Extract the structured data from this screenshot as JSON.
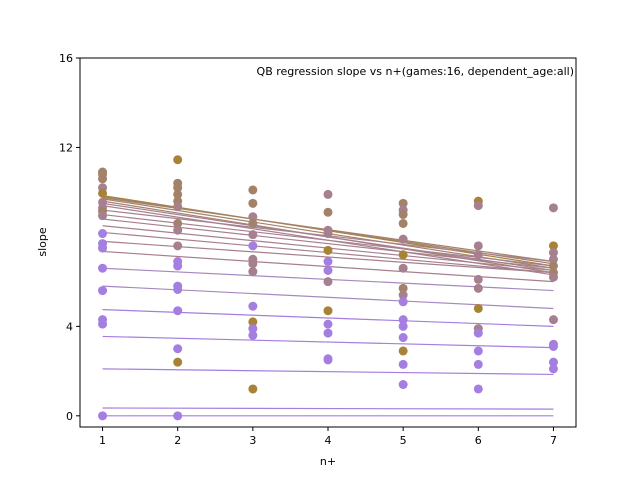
{
  "chart_data": {
    "type": "scatter",
    "title": "QB regression slope vs n+(games:16, dependent_age:all)",
    "xlabel": "n+",
    "ylabel": "slope",
    "xlim": [
      0.7,
      7.3
    ],
    "ylim": [
      -0.5,
      16
    ],
    "xticks": [
      1,
      2,
      3,
      4,
      5,
      6,
      7
    ],
    "yticks": [
      0,
      4,
      12,
      16
    ],
    "grid": false,
    "colors": {
      "purple": "#a47ee0",
      "brown": "#a88236"
    },
    "points": [
      {
        "x": 1,
        "y": 10.9,
        "color": "#a3826a"
      },
      {
        "x": 1,
        "y": 10.8,
        "color": "#a3826a"
      },
      {
        "x": 1,
        "y": 10.6,
        "color": "#a3826a"
      },
      {
        "x": 1,
        "y": 10.2,
        "color": "#a7808f"
      },
      {
        "x": 1,
        "y": 9.95,
        "color": "#a88236"
      },
      {
        "x": 1,
        "y": 9.55,
        "color": "#a7808f"
      },
      {
        "x": 1,
        "y": 9.3,
        "color": "#a7808f"
      },
      {
        "x": 1,
        "y": 9.15,
        "color": "#a3826a"
      },
      {
        "x": 1,
        "y": 8.95,
        "color": "#a7808f"
      },
      {
        "x": 1,
        "y": 8.15,
        "color": "#a47ee0"
      },
      {
        "x": 1,
        "y": 7.7,
        "color": "#a47ee0"
      },
      {
        "x": 1,
        "y": 7.5,
        "color": "#a47ee0"
      },
      {
        "x": 1,
        "y": 6.6,
        "color": "#a47ee0"
      },
      {
        "x": 1,
        "y": 5.6,
        "color": "#a47ee0"
      },
      {
        "x": 1,
        "y": 4.3,
        "color": "#a47ee0"
      },
      {
        "x": 1,
        "y": 4.1,
        "color": "#a47ee0"
      },
      {
        "x": 1,
        "y": 0.0,
        "color": "#a47ee0"
      },
      {
        "x": 2,
        "y": 11.45,
        "color": "#a88236"
      },
      {
        "x": 2,
        "y": 10.4,
        "color": "#a3826a"
      },
      {
        "x": 2,
        "y": 10.2,
        "color": "#a3826a"
      },
      {
        "x": 2,
        "y": 9.9,
        "color": "#a3826a"
      },
      {
        "x": 2,
        "y": 9.6,
        "color": "#a3826a"
      },
      {
        "x": 2,
        "y": 9.35,
        "color": "#a7808f"
      },
      {
        "x": 2,
        "y": 8.6,
        "color": "#a3826a"
      },
      {
        "x": 2,
        "y": 8.3,
        "color": "#a7808f"
      },
      {
        "x": 2,
        "y": 7.6,
        "color": "#a7808f"
      },
      {
        "x": 2,
        "y": 6.9,
        "color": "#a47ee0"
      },
      {
        "x": 2,
        "y": 6.7,
        "color": "#a47ee0"
      },
      {
        "x": 2,
        "y": 5.8,
        "color": "#a47ee0"
      },
      {
        "x": 2,
        "y": 5.65,
        "color": "#a47ee0"
      },
      {
        "x": 2,
        "y": 4.7,
        "color": "#a47ee0"
      },
      {
        "x": 2,
        "y": 3.0,
        "color": "#a47ee0"
      },
      {
        "x": 2,
        "y": 2.4,
        "color": "#a88236"
      },
      {
        "x": 2,
        "y": 0.0,
        "color": "#a47ee0"
      },
      {
        "x": 3,
        "y": 10.1,
        "color": "#a3826a"
      },
      {
        "x": 3,
        "y": 9.5,
        "color": "#a3826a"
      },
      {
        "x": 3,
        "y": 8.9,
        "color": "#a7808f"
      },
      {
        "x": 3,
        "y": 8.6,
        "color": "#a3826a"
      },
      {
        "x": 3,
        "y": 8.1,
        "color": "#a7808f"
      },
      {
        "x": 3,
        "y": 7.6,
        "color": "#a47ee0"
      },
      {
        "x": 3,
        "y": 7.0,
        "color": "#a7808f"
      },
      {
        "x": 3,
        "y": 6.8,
        "color": "#a7808f"
      },
      {
        "x": 3,
        "y": 6.45,
        "color": "#a7808f"
      },
      {
        "x": 3,
        "y": 4.9,
        "color": "#a47ee0"
      },
      {
        "x": 3,
        "y": 4.2,
        "color": "#a88236"
      },
      {
        "x": 3,
        "y": 3.9,
        "color": "#a47ee0"
      },
      {
        "x": 3,
        "y": 3.6,
        "color": "#a47ee0"
      },
      {
        "x": 3,
        "y": 1.2,
        "color": "#a88236"
      },
      {
        "x": 4,
        "y": 9.9,
        "color": "#a7808f"
      },
      {
        "x": 4,
        "y": 9.1,
        "color": "#a3826a"
      },
      {
        "x": 4,
        "y": 8.3,
        "color": "#a7808f"
      },
      {
        "x": 4,
        "y": 8.15,
        "color": "#a7808f"
      },
      {
        "x": 4,
        "y": 7.4,
        "color": "#a88236"
      },
      {
        "x": 4,
        "y": 6.9,
        "color": "#a47ee0"
      },
      {
        "x": 4,
        "y": 6.5,
        "color": "#a47ee0"
      },
      {
        "x": 4,
        "y": 6.0,
        "color": "#a7808f"
      },
      {
        "x": 4,
        "y": 4.7,
        "color": "#a88236"
      },
      {
        "x": 4,
        "y": 4.1,
        "color": "#a47ee0"
      },
      {
        "x": 4,
        "y": 3.7,
        "color": "#a47ee0"
      },
      {
        "x": 4,
        "y": 2.55,
        "color": "#a47ee0"
      },
      {
        "x": 4,
        "y": 2.5,
        "color": "#a47ee0"
      },
      {
        "x": 5,
        "y": 9.5,
        "color": "#a3826a"
      },
      {
        "x": 5,
        "y": 9.2,
        "color": "#a7808f"
      },
      {
        "x": 5,
        "y": 9.0,
        "color": "#a3826a"
      },
      {
        "x": 5,
        "y": 8.6,
        "color": "#a3826a"
      },
      {
        "x": 5,
        "y": 7.9,
        "color": "#a7808f"
      },
      {
        "x": 5,
        "y": 7.2,
        "color": "#a88236"
      },
      {
        "x": 5,
        "y": 6.6,
        "color": "#a7808f"
      },
      {
        "x": 5,
        "y": 5.7,
        "color": "#a3826a"
      },
      {
        "x": 5,
        "y": 5.4,
        "color": "#a7808f"
      },
      {
        "x": 5,
        "y": 5.1,
        "color": "#a47ee0"
      },
      {
        "x": 5,
        "y": 4.3,
        "color": "#a47ee0"
      },
      {
        "x": 5,
        "y": 4.0,
        "color": "#a47ee0"
      },
      {
        "x": 5,
        "y": 3.5,
        "color": "#a47ee0"
      },
      {
        "x": 5,
        "y": 2.9,
        "color": "#a88236"
      },
      {
        "x": 5,
        "y": 2.3,
        "color": "#a47ee0"
      },
      {
        "x": 5,
        "y": 1.4,
        "color": "#a47ee0"
      },
      {
        "x": 6,
        "y": 9.6,
        "color": "#a88236"
      },
      {
        "x": 6,
        "y": 9.4,
        "color": "#a7808f"
      },
      {
        "x": 6,
        "y": 7.6,
        "color": "#a7808f"
      },
      {
        "x": 6,
        "y": 7.2,
        "color": "#a7808f"
      },
      {
        "x": 6,
        "y": 6.1,
        "color": "#a7808f"
      },
      {
        "x": 6,
        "y": 5.7,
        "color": "#a7808f"
      },
      {
        "x": 6,
        "y": 4.8,
        "color": "#a88236"
      },
      {
        "x": 6,
        "y": 3.9,
        "color": "#a7808f"
      },
      {
        "x": 6,
        "y": 3.7,
        "color": "#a47ee0"
      },
      {
        "x": 6,
        "y": 2.9,
        "color": "#a47ee0"
      },
      {
        "x": 6,
        "y": 2.3,
        "color": "#a47ee0"
      },
      {
        "x": 6,
        "y": 1.2,
        "color": "#a47ee0"
      },
      {
        "x": 7,
        "y": 9.3,
        "color": "#a7808f"
      },
      {
        "x": 7,
        "y": 7.6,
        "color": "#a88236"
      },
      {
        "x": 7,
        "y": 7.3,
        "color": "#a7808f"
      },
      {
        "x": 7,
        "y": 7.0,
        "color": "#a7808f"
      },
      {
        "x": 7,
        "y": 6.7,
        "color": "#a3826a"
      },
      {
        "x": 7,
        "y": 6.4,
        "color": "#a3826a"
      },
      {
        "x": 7,
        "y": 6.2,
        "color": "#a7808f"
      },
      {
        "x": 7,
        "y": 4.3,
        "color": "#a7808f"
      },
      {
        "x": 7,
        "y": 3.2,
        "color": "#a47ee0"
      },
      {
        "x": 7,
        "y": 3.1,
        "color": "#a47ee0"
      },
      {
        "x": 7,
        "y": 2.4,
        "color": "#a47ee0"
      },
      {
        "x": 7,
        "y": 2.1,
        "color": "#a47ee0"
      }
    ],
    "lines": [
      {
        "y1": 9.85,
        "y7": 6.7,
        "color": "#a88236"
      },
      {
        "y1": 9.8,
        "y7": 6.8,
        "color": "#a3826a"
      },
      {
        "y1": 9.75,
        "y7": 6.9,
        "color": "#a3826a"
      },
      {
        "y1": 9.7,
        "y7": 6.6,
        "color": "#a3826a"
      },
      {
        "y1": 9.6,
        "y7": 6.4,
        "color": "#a3826a"
      },
      {
        "y1": 9.5,
        "y7": 6.5,
        "color": "#a7808f"
      },
      {
        "y1": 9.4,
        "y7": 6.3,
        "color": "#a7808f"
      },
      {
        "y1": 9.2,
        "y7": 6.9,
        "color": "#a7808f"
      },
      {
        "y1": 9.0,
        "y7": 6.7,
        "color": "#a7808f"
      },
      {
        "y1": 8.8,
        "y7": 6.6,
        "color": "#a7808f"
      },
      {
        "y1": 8.5,
        "y7": 6.5,
        "color": "#a7808f"
      },
      {
        "y1": 8.2,
        "y7": 6.4,
        "color": "#a7808f"
      },
      {
        "y1": 7.8,
        "y7": 6.4,
        "color": "#a7808f"
      },
      {
        "y1": 7.35,
        "y7": 6.0,
        "color": "#a7808f"
      },
      {
        "y1": 6.6,
        "y7": 5.6,
        "color": "#a68abf"
      },
      {
        "y1": 5.8,
        "y7": 4.8,
        "color": "#a68abf"
      },
      {
        "y1": 4.75,
        "y7": 4.0,
        "color": "#a47ee0"
      },
      {
        "y1": 3.55,
        "y7": 3.05,
        "color": "#a47ee0"
      },
      {
        "y1": 2.1,
        "y7": 1.85,
        "color": "#a47ee0"
      },
      {
        "y1": 0.35,
        "y7": 0.3,
        "color": "#a47ee0"
      },
      {
        "y1": 0.0,
        "y7": 0.0,
        "color": "#a47ee0"
      }
    ]
  }
}
